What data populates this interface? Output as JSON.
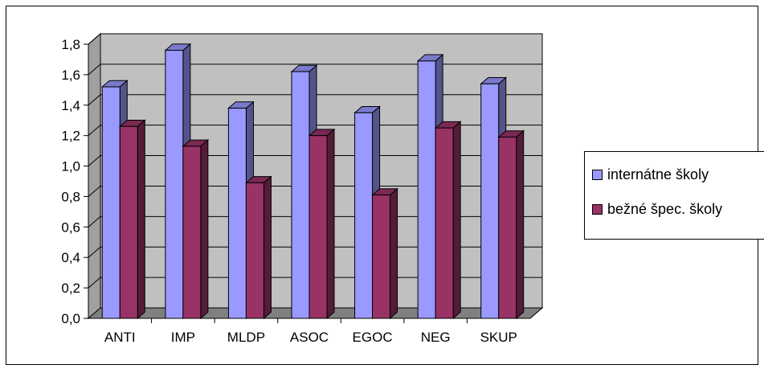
{
  "chart_data": {
    "type": "bar",
    "categories": [
      "ANTI",
      "IMP",
      "MLDP",
      "ASOC",
      "EGOC",
      "NEG",
      "SKUP"
    ],
    "series": [
      {
        "name": "internátne školy",
        "values": [
          1.52,
          1.76,
          1.38,
          1.62,
          1.35,
          1.69,
          1.54
        ],
        "color": "#9999ff"
      },
      {
        "name": "bežné špec. školy",
        "values": [
          1.26,
          1.13,
          0.89,
          1.2,
          0.81,
          1.25,
          1.19
        ],
        "color": "#993366"
      }
    ],
    "ylim": [
      0,
      1.8
    ],
    "yticks": [
      "0,0",
      "0,2",
      "0,4",
      "0,6",
      "0,8",
      "1,0",
      "1,2",
      "1,4",
      "1,6",
      "1,8"
    ],
    "grid": true,
    "legend_position": "right",
    "wall_color": "#c0c0c0",
    "floor_color": "#808080"
  }
}
